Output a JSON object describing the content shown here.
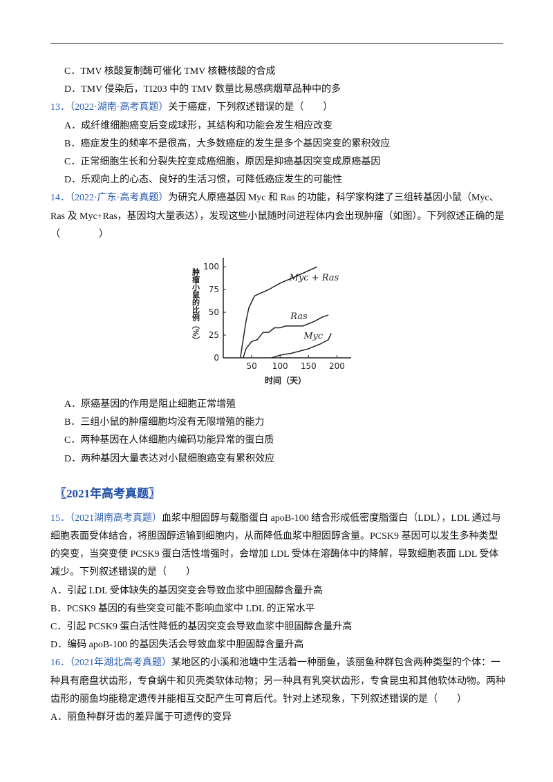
{
  "options_top": [
    "C．TMV 核酸复制酶可催化 TMV 核糖核酸的合成",
    "D．TMV 侵染后，TI203 中的 TMV 数量比易感病烟草品种中的多"
  ],
  "questions": [
    {
      "number": "13．",
      "source": "（2022·湖南·高考真题）",
      "stem": "关于癌症，下列叙述错误的是（　　）",
      "options": [
        "A．成纤维细胞癌变后变成球形，其结构和功能会发生相应改变",
        "B．癌症发生的频率不是很高，大多数癌症的发生是多个基因突变的累积效应",
        "C．正常细胞生长和分裂失控变成癌细胞，原因是抑癌基因突变成原癌基因",
        "D．乐观向上的心态、良好的生活习惯，可降低癌症发生的可能性"
      ]
    },
    {
      "number": "14．",
      "source": "（2022·广东·高考真题）",
      "stem": "为研究人原癌基因 Myc 和 Ras 的功能，科学家构建了三组转基因小鼠（Myc、Ras 及 Myc+Ras，基因均大量表达），发现这些小鼠随时间进程体内会出现肿瘤（如图）。下列叙述正确的是（　　　　）",
      "options": [
        "A．原癌基因的作用是阻止细胞正常增殖",
        "B．三组小鼠的肿瘤细胞均没有无限增殖的能力",
        "C．两种基因在人体细胞内编码功能异常的蛋白质",
        "D．两种基因大量表达对小鼠细胞癌变有累积效应"
      ]
    },
    {
      "section": "〖2021年高考真题〗"
    },
    {
      "number": "15．",
      "source": "（2021湖南高考真题）",
      "stem": "血浆中胆固醇与载脂蛋白 apoB-100 结合形成低密度脂蛋白（LDL），LDL 通过与细胞表面受体结合，将胆固醇运输到细胞内，从而降低血浆中胆固醇含量。PCSK9 基因可以发生多种类型的突变，当突变使 PCSK9 蛋白活性增强时，会增加 LDL 受体在溶酶体中的降解，导致细胞表面 LDL 受体减少。下列叙述错误的是（　　）",
      "options": [
        "A．引起 LDL 受体缺失的基因突变会导致血浆中胆固醇含量升高",
        "B．PCSK9 基因的有些突变可能不影响血浆中 LDL 的正常水平",
        "C．引起 PCSK9 蛋白活性降低的基因突变会导致血浆中胆固醇含量升高",
        "D．编码 apoB-100 的基因失活会导致血浆中胆固醇含量升高"
      ]
    },
    {
      "number": "16．",
      "source": "（2021年湖北高考真题）",
      "stem": "某地区的小溪和池塘中生活着一种丽鱼，该丽鱼种群包含两种类型的个体：一种具有磨盘状齿形，专食蜗牛和贝壳类软体动物；另一种具有乳突状齿形，专食昆虫和其他软体动物。两种齿形的丽鱼均能稳定遗传并能相互交配产生可育后代。针对上述现象，下列叙述错误的是（　　）",
      "options": [
        "A．丽鱼种群牙齿的差异属于可遗传的变异"
      ]
    }
  ],
  "chart_data": {
    "type": "line",
    "y_label": "肿瘤小鼠的比例（%）",
    "x_label": "时间（天）",
    "xlim": [
      0,
      225
    ],
    "ylim": [
      0,
      110
    ],
    "xticks": [
      50,
      100,
      150,
      200
    ],
    "yticks": [
      0,
      25,
      50,
      75,
      100
    ],
    "series": [
      {
        "name": "Myc + Ras",
        "color": "#222222",
        "x": [
          30,
          35,
          40,
          45,
          55,
          80,
          100,
          130,
          165
        ],
        "values": [
          0,
          20,
          40,
          55,
          68,
          75,
          82,
          90,
          100
        ]
      },
      {
        "name": "Ras",
        "color": "#222222",
        "x": [
          35,
          40,
          50,
          60,
          70,
          80,
          90,
          100,
          110,
          140,
          160,
          175,
          185
        ],
        "values": [
          0,
          10,
          18,
          20,
          28,
          28,
          33,
          33,
          35,
          35,
          40,
          45,
          47
        ]
      },
      {
        "name": "Myc",
        "color": "#222222",
        "x": [
          85,
          100,
          120,
          150,
          170,
          185,
          190
        ],
        "values": [
          0,
          3,
          5,
          10,
          15,
          20,
          27
        ]
      }
    ]
  }
}
